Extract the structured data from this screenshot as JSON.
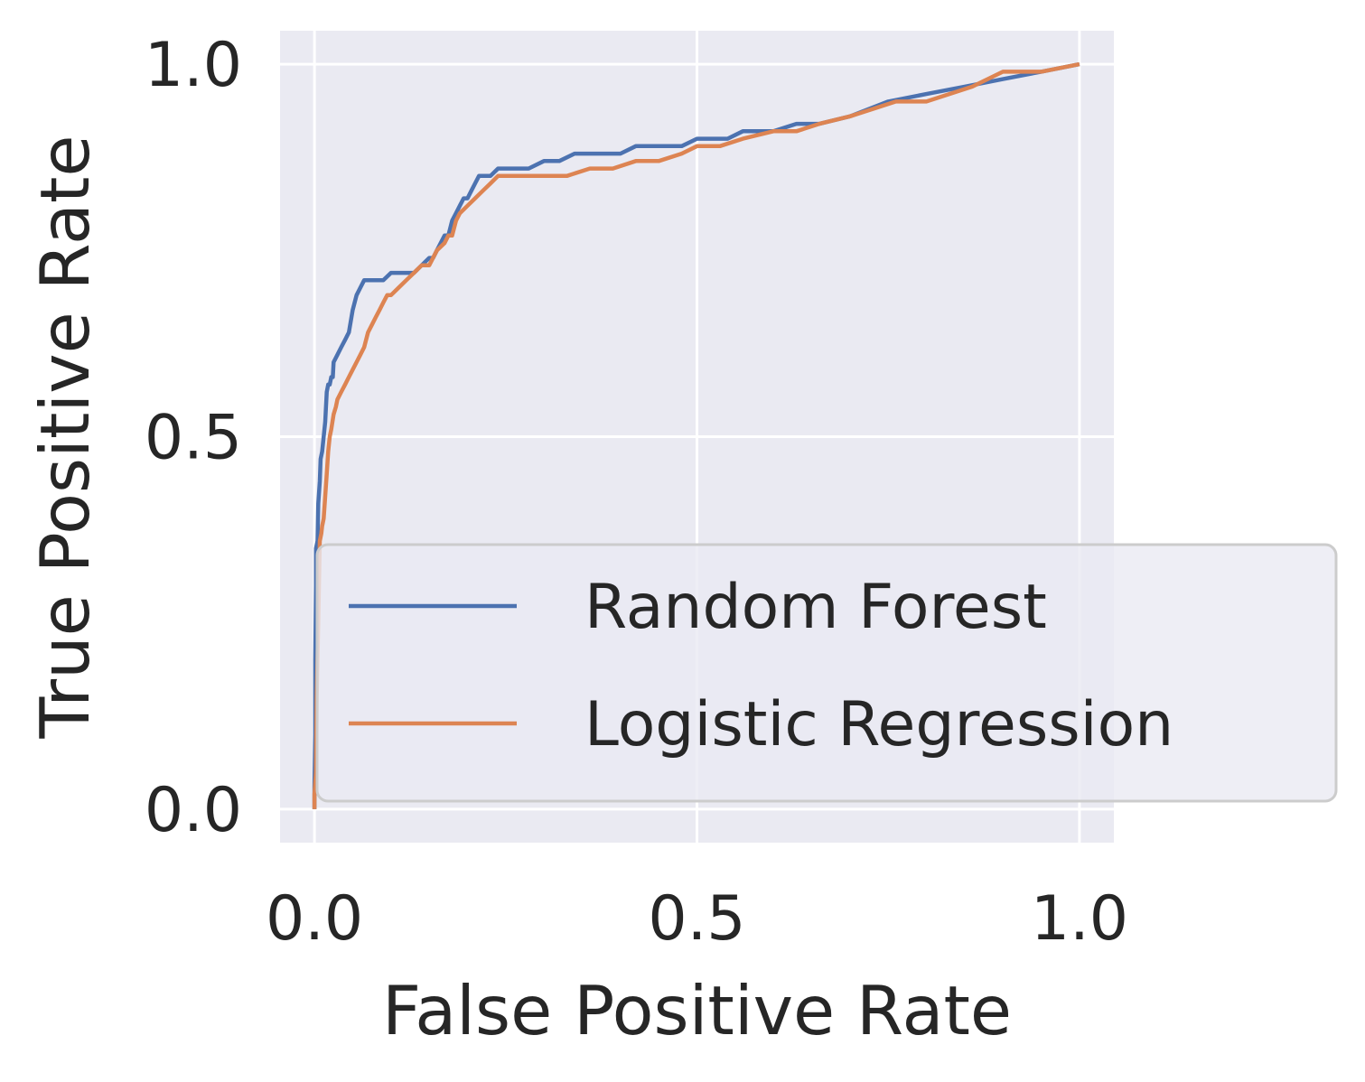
{
  "chart_data": {
    "type": "line",
    "title": "",
    "xlabel": "False Positive Rate",
    "ylabel": "True Positive Rate",
    "xlim": [
      -0.045,
      1.045
    ],
    "ylim": [
      -0.045,
      1.045
    ],
    "xticks": [
      0.0,
      0.5,
      1.0
    ],
    "yticks": [
      0.0,
      0.5,
      1.0
    ],
    "xtick_labels": [
      "0.0",
      "0.5",
      "1.0"
    ],
    "ytick_labels": [
      "0.0",
      "0.5",
      "1.0"
    ],
    "grid": true,
    "background": "#eaeaf2",
    "legend": {
      "placement": "lower-right"
    },
    "series": [
      {
        "name": "Random Forest",
        "color": "#4c72b0",
        "x": [
          0.0,
          0.0,
          0.001,
          0.001,
          0.002,
          0.002,
          0.004,
          0.005,
          0.007,
          0.008,
          0.01,
          0.012,
          0.014,
          0.016,
          0.018,
          0.018,
          0.02,
          0.022,
          0.024,
          0.025,
          0.03,
          0.03,
          0.035,
          0.04,
          0.045,
          0.05,
          0.055,
          0.06,
          0.065,
          0.07,
          0.07,
          0.075,
          0.08,
          0.09,
          0.1,
          0.12,
          0.13,
          0.14,
          0.15,
          0.155,
          0.16,
          0.165,
          0.17,
          0.175,
          0.18,
          0.185,
          0.19,
          0.195,
          0.2,
          0.205,
          0.21,
          0.215,
          0.22,
          0.23,
          0.24,
          0.25,
          0.26,
          0.28,
          0.3,
          0.32,
          0.34,
          0.36,
          0.38,
          0.4,
          0.42,
          0.44,
          0.46,
          0.48,
          0.5,
          0.52,
          0.54,
          0.56,
          0.58,
          0.6,
          0.63,
          0.66,
          0.7,
          0.75,
          0.8,
          0.85,
          0.9,
          0.95,
          1.0
        ],
        "y": [
          0.0,
          0.03,
          0.1,
          0.2,
          0.3,
          0.35,
          0.36,
          0.41,
          0.44,
          0.47,
          0.48,
          0.5,
          0.52,
          0.56,
          0.57,
          0.57,
          0.57,
          0.58,
          0.58,
          0.6,
          0.61,
          0.61,
          0.62,
          0.63,
          0.64,
          0.67,
          0.69,
          0.7,
          0.71,
          0.71,
          0.71,
          0.71,
          0.71,
          0.71,
          0.72,
          0.72,
          0.72,
          0.73,
          0.74,
          0.74,
          0.75,
          0.76,
          0.77,
          0.77,
          0.79,
          0.8,
          0.81,
          0.82,
          0.82,
          0.83,
          0.84,
          0.85,
          0.85,
          0.85,
          0.86,
          0.86,
          0.86,
          0.86,
          0.87,
          0.87,
          0.88,
          0.88,
          0.88,
          0.88,
          0.89,
          0.89,
          0.89,
          0.89,
          0.9,
          0.9,
          0.9,
          0.91,
          0.91,
          0.91,
          0.92,
          0.92,
          0.93,
          0.95,
          0.96,
          0.97,
          0.98,
          0.99,
          1.0
        ]
      },
      {
        "name": "Logistic Regression",
        "color": "#dd8452",
        "x": [
          0.0,
          0.0,
          0.002,
          0.003,
          0.005,
          0.007,
          0.009,
          0.01,
          0.012,
          0.014,
          0.016,
          0.018,
          0.02,
          0.022,
          0.025,
          0.028,
          0.03,
          0.035,
          0.04,
          0.045,
          0.05,
          0.055,
          0.06,
          0.065,
          0.07,
          0.075,
          0.08,
          0.085,
          0.09,
          0.095,
          0.1,
          0.11,
          0.12,
          0.13,
          0.14,
          0.15,
          0.16,
          0.17,
          0.175,
          0.18,
          0.185,
          0.19,
          0.2,
          0.21,
          0.22,
          0.23,
          0.24,
          0.26,
          0.28,
          0.3,
          0.33,
          0.36,
          0.39,
          0.42,
          0.45,
          0.48,
          0.5,
          0.53,
          0.56,
          0.6,
          0.63,
          0.66,
          0.7,
          0.73,
          0.76,
          0.8,
          0.83,
          0.86,
          0.9,
          0.95,
          1.0
        ],
        "y": [
          0.0,
          0.02,
          0.05,
          0.15,
          0.25,
          0.36,
          0.37,
          0.38,
          0.39,
          0.42,
          0.45,
          0.48,
          0.5,
          0.51,
          0.53,
          0.54,
          0.55,
          0.56,
          0.57,
          0.58,
          0.59,
          0.6,
          0.61,
          0.62,
          0.64,
          0.65,
          0.66,
          0.67,
          0.68,
          0.69,
          0.69,
          0.7,
          0.71,
          0.72,
          0.73,
          0.73,
          0.75,
          0.76,
          0.77,
          0.77,
          0.79,
          0.8,
          0.81,
          0.82,
          0.83,
          0.84,
          0.85,
          0.85,
          0.85,
          0.85,
          0.85,
          0.86,
          0.86,
          0.87,
          0.87,
          0.88,
          0.89,
          0.89,
          0.9,
          0.91,
          0.91,
          0.92,
          0.93,
          0.94,
          0.95,
          0.95,
          0.96,
          0.97,
          0.99,
          0.99,
          1.0
        ]
      }
    ]
  }
}
